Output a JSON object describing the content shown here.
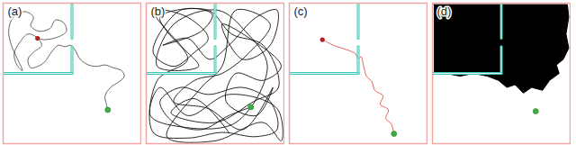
{
  "chart_data": [
    {
      "type": "line",
      "title": "(a)",
      "xlim": [
        0,
        100
      ],
      "ylim": [
        0,
        100
      ],
      "tick_labels": false,
      "frame_color": "#f2a5a5",
      "walls": {
        "color": "#3cc8b4",
        "segments": [
          {
            "x": [
              50,
              50
            ],
            "y": [
              0,
              25
            ]
          },
          {
            "x": [
              50,
              50
            ],
            "y": [
              31,
              50
            ]
          },
          {
            "x": [
              0,
              50
            ],
            "y": [
              50,
              50
            ]
          }
        ]
      },
      "color": "#555555",
      "trajectory": {
        "x": [
          76,
          75,
          74,
          78,
          84,
          88,
          86,
          80,
          74,
          68,
          62,
          56,
          52,
          49,
          45,
          40,
          35,
          30,
          25,
          20,
          18,
          22,
          28,
          24,
          18,
          12,
          8,
          10,
          14,
          6,
          4,
          6,
          10,
          16,
          22,
          20,
          26,
          34,
          38,
          44,
          46,
          40,
          30,
          25
        ],
        "y": [
          76,
          72,
          66,
          60,
          56,
          52,
          48,
          46,
          44,
          45,
          44,
          40,
          33,
          30,
          31,
          30,
          35,
          42,
          45,
          46,
          40,
          35,
          30,
          24,
          22,
          28,
          36,
          44,
          48,
          30,
          20,
          12,
          8,
          6,
          10,
          16,
          20,
          18,
          12,
          14,
          20,
          24,
          26,
          25
        ]
      },
      "start": {
        "x": 76,
        "y": 76,
        "color": "#3cb043"
      },
      "end": {
        "x": 25,
        "y": 25,
        "color": "#b22222"
      }
    },
    {
      "type": "line",
      "title": "(b)",
      "xlim": [
        0,
        100
      ],
      "ylim": [
        0,
        100
      ],
      "tick_labels": false,
      "frame_color": "#f2a5a5",
      "walls": {
        "color": "#3cc8b4",
        "segments": [
          {
            "x": [
              50,
              50
            ],
            "y": [
              0,
              25
            ]
          },
          {
            "x": [
              50,
              50
            ],
            "y": [
              31,
              50
            ]
          },
          {
            "x": [
              0,
              50
            ],
            "y": [
              50,
              50
            ]
          }
        ]
      },
      "color": "#111111",
      "trajectory": {
        "x": [
          76,
          60,
          40,
          20,
          10,
          25,
          45,
          70,
          90,
          95,
          80,
          55,
          30,
          5,
          8,
          30,
          15,
          5,
          30,
          45,
          35,
          20,
          5,
          25,
          48,
          40,
          12,
          30,
          46,
          60,
          80,
          95,
          90,
          70,
          55,
          75,
          98,
          85,
          65,
          58,
          80,
          92,
          70,
          45,
          20,
          35,
          55,
          75,
          90,
          65,
          55,
          40,
          15,
          50,
          85,
          98,
          95,
          60,
          30,
          10,
          3,
          25,
          65,
          88,
          72,
          52,
          20,
          8,
          38,
          25,
          10,
          45,
          62,
          85,
          96,
          78,
          50,
          18,
          35,
          60
        ],
        "y": [
          74,
          80,
          90,
          85,
          70,
          60,
          65,
          60,
          70,
          90,
          95,
          92,
          96,
          92,
          55,
          40,
          20,
          5,
          10,
          25,
          35,
          45,
          35,
          5,
          8,
          20,
          30,
          25,
          40,
          30,
          10,
          5,
          30,
          40,
          15,
          25,
          45,
          55,
          50,
          70,
          80,
          60,
          90,
          75,
          70,
          55,
          50,
          35,
          15,
          5,
          45,
          60,
          95,
          98,
          85,
          98,
          75,
          65,
          80,
          60,
          80,
          88,
          85,
          45,
          20,
          5,
          15,
          45,
          45,
          30,
          10,
          5,
          22,
          30,
          60,
          70,
          85,
          78,
          68,
          92
        ]
      },
      "start": {
        "x": 76,
        "y": 74,
        "color": "#3cb043"
      }
    },
    {
      "type": "line",
      "title": "(c)",
      "xlim": [
        0,
        100
      ],
      "ylim": [
        0,
        100
      ],
      "tick_labels": false,
      "frame_color": "#f2a5a5",
      "walls": {
        "color": "#3cc8b4",
        "segments": [
          {
            "x": [
              50,
              50
            ],
            "y": [
              0,
              25
            ]
          },
          {
            "x": [
              50,
              50
            ],
            "y": [
              31,
              50
            ]
          },
          {
            "x": [
              0,
              50
            ],
            "y": [
              50,
              50
            ]
          }
        ]
      },
      "color": "#e05050",
      "trajectory": {
        "x": [
          76,
          74,
          70,
          72,
          66,
          68,
          62,
          60,
          56,
          54,
          52,
          50,
          48,
          44,
          38,
          32,
          28,
          24
        ],
        "y": [
          93,
          86,
          82,
          76,
          72,
          66,
          62,
          56,
          52,
          45,
          38,
          40,
          36,
          34,
          32,
          30,
          28,
          26
        ]
      },
      "start": {
        "x": 76,
        "y": 93,
        "color": "#3cb043"
      },
      "end": {
        "x": 24,
        "y": 26,
        "color": "#b22222"
      }
    },
    {
      "type": "area",
      "title": "(d)",
      "xlim": [
        0,
        100
      ],
      "ylim": [
        0,
        100
      ],
      "tick_labels": false,
      "frame_color": "#f2a5a5",
      "walls": {
        "color": "#3cc8b4",
        "segments": [
          {
            "x": [
              50,
              50
            ],
            "y": [
              0,
              25
            ]
          },
          {
            "x": [
              50,
              50
            ],
            "y": [
              31,
              50
            ]
          },
          {
            "x": [
              0,
              50
            ],
            "y": [
              50,
              50
            ]
          }
        ]
      },
      "color": "#000000",
      "trajectory": {
        "x": [
          1,
          98,
          99,
          97,
          99,
          95,
          90,
          92,
          85,
          80,
          72,
          66,
          60,
          54,
          48,
          40,
          30,
          20,
          10,
          1
        ],
        "y": [
          1,
          1,
          10,
          22,
          32,
          40,
          44,
          50,
          55,
          62,
          60,
          64,
          58,
          60,
          55,
          52,
          50,
          52,
          50,
          50
        ]
      },
      "start": {
        "x": 75,
        "y": 77,
        "color": "#3cb043"
      }
    }
  ]
}
